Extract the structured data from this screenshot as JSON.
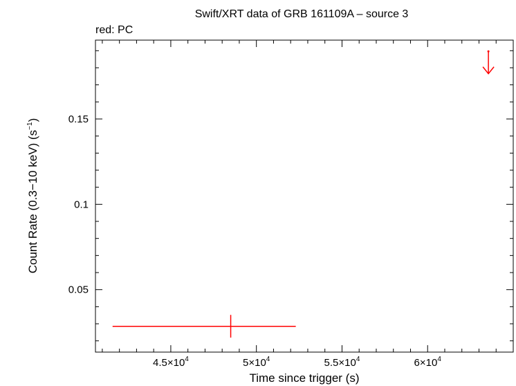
{
  "chart_data": {
    "type": "scatter",
    "title": "Swift/XRT data of GRB 161109A – source 3",
    "subtitle": "red: PC",
    "xlabel": "Time since trigger (s)",
    "ylabel": {
      "prefix": "Count Rate (0.3−10 keV) (s",
      "sup": "−1",
      "suffix": ")"
    },
    "xlim": [
      40600,
      65000
    ],
    "ylim": [
      0.0134,
      0.1962
    ],
    "x_ticks": [
      {
        "value": 45000,
        "mantissa": "4.5×10",
        "exp": "4"
      },
      {
        "value": 50000,
        "mantissa": "5×10",
        "exp": "4"
      },
      {
        "value": 55000,
        "mantissa": "5.5×10",
        "exp": "4"
      },
      {
        "value": 60000,
        "mantissa": "6×10",
        "exp": "4"
      }
    ],
    "y_ticks": [
      {
        "value": 0.05,
        "label": "0.05"
      },
      {
        "value": 0.1,
        "label": "0.1"
      },
      {
        "value": 0.15,
        "label": "0.15"
      }
    ],
    "series": [
      {
        "color": "#ff0000",
        "points": [
          {
            "x": 48500,
            "y": 0.0285,
            "xerr": [
              41600,
              52300
            ],
            "yerr": [
              0.0219,
              0.0352
            ]
          }
        ],
        "upper_limits": [
          {
            "x": 63550,
            "y": 0.1896,
            "arrow_to": 0.1765
          }
        ]
      }
    ],
    "grid": false
  }
}
